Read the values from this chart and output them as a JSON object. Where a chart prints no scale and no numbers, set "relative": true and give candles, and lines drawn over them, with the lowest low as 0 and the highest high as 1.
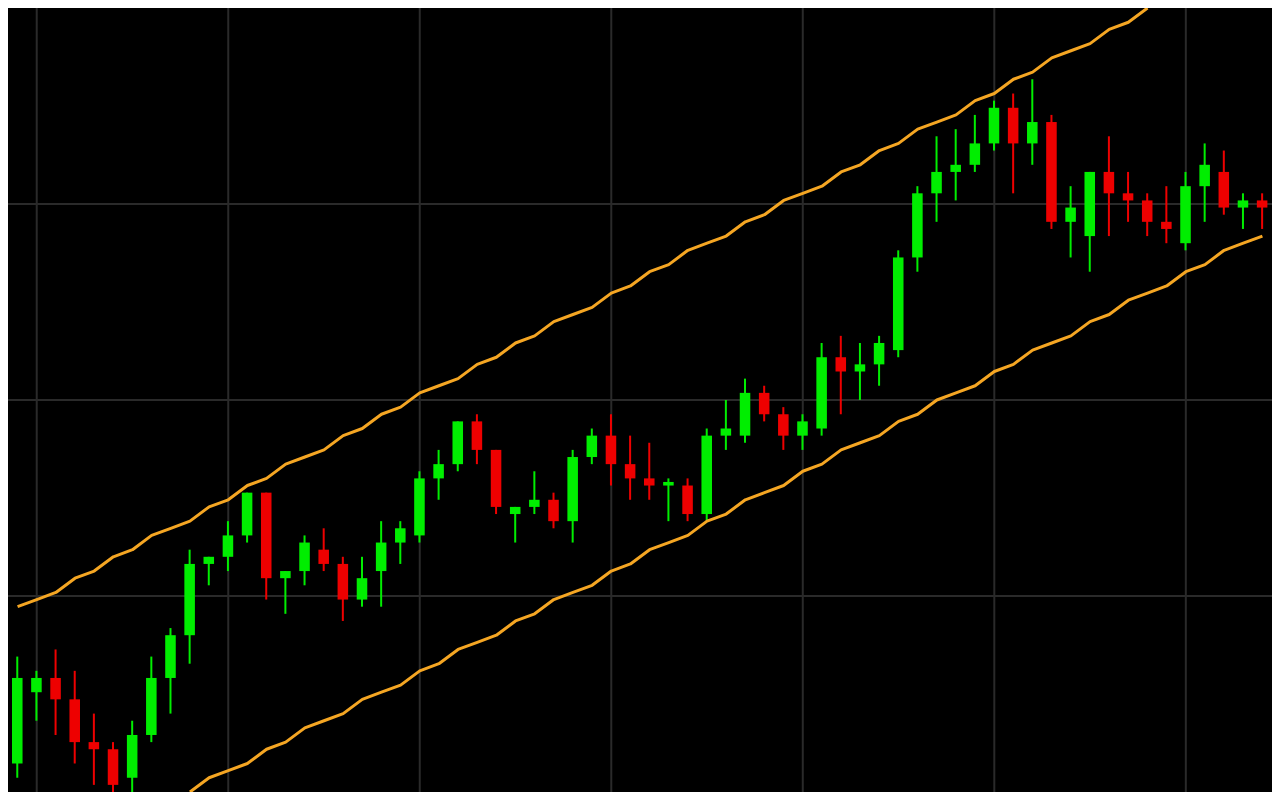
{
  "chart_data": {
    "type": "candlestick",
    "relative": true,
    "grid": true,
    "categories": [
      null,
      null,
      null,
      null,
      null,
      null,
      null,
      null,
      null,
      null,
      null,
      null,
      null,
      null,
      null,
      null,
      null,
      null,
      null,
      null,
      null,
      null,
      null,
      null,
      null,
      null,
      null,
      null,
      null,
      null,
      null,
      null,
      null,
      null,
      null,
      null,
      null,
      null,
      null,
      null,
      null,
      null,
      null,
      null,
      null,
      null,
      null,
      null,
      null,
      null,
      null,
      null,
      null,
      null,
      null,
      null,
      null,
      null,
      null,
      null,
      null,
      null,
      null,
      null,
      null,
      null
    ],
    "ohlc": [
      [
        0.04,
        0.19,
        0.02,
        0.16
      ],
      [
        0.14,
        0.17,
        0.1,
        0.16
      ],
      [
        0.16,
        0.2,
        0.08,
        0.13
      ],
      [
        0.13,
        0.17,
        0.04,
        0.07
      ],
      [
        0.07,
        0.11,
        0.01,
        0.06
      ],
      [
        0.06,
        0.07,
        0,
        0.01
      ],
      [
        0.02,
        0.1,
        0,
        0.08
      ],
      [
        0.08,
        0.19,
        0.07,
        0.16
      ],
      [
        0.16,
        0.23,
        0.11,
        0.22
      ],
      [
        0.22,
        0.34,
        0.18,
        0.32
      ],
      [
        0.32,
        0.33,
        0.29,
        0.33
      ],
      [
        0.33,
        0.38,
        0.31,
        0.36
      ],
      [
        0.36,
        0.42,
        0.35,
        0.42
      ],
      [
        0.42,
        0.42,
        0.27,
        0.3
      ],
      [
        0.3,
        0.31,
        0.25,
        0.31
      ],
      [
        0.31,
        0.36,
        0.29,
        0.35
      ],
      [
        0.34,
        0.37,
        0.31,
        0.32
      ],
      [
        0.32,
        0.33,
        0.24,
        0.27
      ],
      [
        0.27,
        0.33,
        0.26,
        0.3
      ],
      [
        0.31,
        0.38,
        0.26,
        0.35
      ],
      [
        0.35,
        0.38,
        0.32,
        0.37
      ],
      [
        0.36,
        0.45,
        0.35,
        0.44
      ],
      [
        0.44,
        0.48,
        0.41,
        0.46
      ],
      [
        0.46,
        0.52,
        0.45,
        0.52
      ],
      [
        0.52,
        0.53,
        0.46,
        0.48
      ],
      [
        0.48,
        0.48,
        0.39,
        0.4
      ],
      [
        0.39,
        0.4,
        0.35,
        0.4
      ],
      [
        0.4,
        0.45,
        0.39,
        0.41
      ],
      [
        0.41,
        0.42,
        0.37,
        0.38
      ],
      [
        0.38,
        0.48,
        0.35,
        0.47
      ],
      [
        0.47,
        0.51,
        0.46,
        0.5
      ],
      [
        0.5,
        0.53,
        0.43,
        0.46
      ],
      [
        0.46,
        0.5,
        0.41,
        0.44
      ],
      [
        0.44,
        0.49,
        0.41,
        0.43
      ],
      [
        0.43,
        0.44,
        0.38,
        0.435
      ],
      [
        0.43,
        0.44,
        0.38,
        0.39
      ],
      [
        0.39,
        0.51,
        0.38,
        0.5
      ],
      [
        0.5,
        0.55,
        0.48,
        0.51
      ],
      [
        0.5,
        0.58,
        0.49,
        0.56
      ],
      [
        0.56,
        0.57,
        0.52,
        0.53
      ],
      [
        0.53,
        0.54,
        0.48,
        0.5
      ],
      [
        0.5,
        0.53,
        0.48,
        0.52
      ],
      [
        0.51,
        0.63,
        0.5,
        0.61
      ],
      [
        0.61,
        0.64,
        0.53,
        0.59
      ],
      [
        0.59,
        0.63,
        0.55,
        0.6
      ],
      [
        0.6,
        0.64,
        0.57,
        0.63
      ],
      [
        0.62,
        0.76,
        0.61,
        0.75
      ],
      [
        0.75,
        0.85,
        0.73,
        0.84
      ],
      [
        0.84,
        0.92,
        0.8,
        0.87
      ],
      [
        0.87,
        0.93,
        0.83,
        0.88
      ],
      [
        0.88,
        0.95,
        0.87,
        0.91
      ],
      [
        0.91,
        0.97,
        0.9,
        0.96
      ],
      [
        0.96,
        0.98,
        0.84,
        0.91
      ],
      [
        0.91,
        1.0,
        0.88,
        0.94
      ],
      [
        0.94,
        0.95,
        0.79,
        0.8
      ],
      [
        0.8,
        0.85,
        0.75,
        0.82
      ],
      [
        0.78,
        0.87,
        0.73,
        0.87
      ],
      [
        0.87,
        0.92,
        0.78,
        0.84
      ],
      [
        0.84,
        0.87,
        0.8,
        0.83
      ],
      [
        0.83,
        0.84,
        0.78,
        0.8
      ],
      [
        0.8,
        0.85,
        0.77,
        0.79
      ],
      [
        0.77,
        0.87,
        0.76,
        0.85
      ],
      [
        0.85,
        0.91,
        0.8,
        0.88
      ],
      [
        0.87,
        0.9,
        0.81,
        0.82
      ],
      [
        0.82,
        0.84,
        0.79,
        0.83
      ],
      [
        0.83,
        0.84,
        0.79,
        0.82
      ]
    ],
    "colors": [
      "#00ee00",
      "#00ee00",
      "#ee0000",
      "#ee0000",
      "#ee0000",
      "#ee0000",
      "#00ee00",
      "#00ee00",
      "#00ee00",
      "#00ee00",
      "#00ee00",
      "#00ee00",
      "#00ee00",
      "#ee0000",
      "#00ee00",
      "#00ee00",
      "#ee0000",
      "#ee0000",
      "#00ee00",
      "#00ee00",
      "#00ee00",
      "#00ee00",
      "#00ee00",
      "#00ee00",
      "#ee0000",
      "#ee0000",
      "#00ee00",
      "#00ee00",
      "#ee0000",
      "#00ee00",
      "#00ee00",
      "#ee0000",
      "#ee0000",
      "#ee0000",
      "#00ee00",
      "#ee0000",
      "#00ee00",
      "#00ee00",
      "#00ee00",
      "#ee0000",
      "#ee0000",
      "#00ee00",
      "#00ee00",
      "#ee0000",
      "#00ee00",
      "#00ee00",
      "#00ee00",
      "#00ee00",
      "#00ee00",
      "#00ee00",
      "#00ee00",
      "#00ee00",
      "#ee0000",
      "#00ee00",
      "#ee0000",
      "#00ee00",
      "#00ee00",
      "#ee0000",
      "#ee0000",
      "#ee0000",
      "#ee0000",
      "#00ee00",
      "#00ee00",
      "#ee0000",
      "#00ee00",
      "#ee0000"
    ],
    "series": [
      {
        "type": "line",
        "color": "#f5a623",
        "values": [
          0.26,
          0.27,
          0.28,
          0.3,
          0.31,
          0.33,
          0.34,
          0.36,
          0.37,
          0.38,
          0.4,
          0.41,
          0.43,
          0.44,
          0.46,
          0.47,
          0.48,
          0.5,
          0.51,
          0.53,
          0.54,
          0.56,
          0.57,
          0.58,
          0.6,
          0.61,
          0.63,
          0.64,
          0.66,
          0.67,
          0.68,
          0.7,
          0.71,
          0.73,
          0.74,
          0.76,
          0.77,
          0.78,
          0.8,
          0.81,
          0.83,
          0.84,
          0.85,
          0.87,
          0.88,
          0.9,
          0.91,
          0.93,
          0.94,
          0.95,
          0.97,
          0.98,
          1.0,
          1.01,
          1.03,
          1.04,
          1.05,
          1.07,
          1.08,
          1.1,
          null,
          null,
          null,
          null,
          null,
          null
        ]
      },
      {
        "type": "line",
        "color": "#f5a623",
        "values": [
          null,
          null,
          null,
          null,
          null,
          null,
          null,
          null,
          null,
          0,
          0.02,
          0.03,
          0.04,
          0.06,
          0.07,
          0.09,
          0.1,
          0.11,
          0.13,
          0.14,
          0.15,
          0.17,
          0.18,
          0.2,
          0.21,
          0.22,
          0.24,
          0.25,
          0.27,
          0.28,
          0.29,
          0.31,
          0.32,
          0.34,
          0.35,
          0.36,
          0.38,
          0.39,
          0.41,
          0.42,
          0.43,
          0.45,
          0.46,
          0.48,
          0.49,
          0.5,
          0.52,
          0.53,
          0.55,
          0.56,
          0.57,
          0.59,
          0.6,
          0.62,
          0.63,
          0.64,
          0.66,
          0.67,
          0.69,
          0.7,
          0.71,
          0.73,
          0.74,
          0.76,
          0.77,
          0.78
        ]
      }
    ]
  }
}
